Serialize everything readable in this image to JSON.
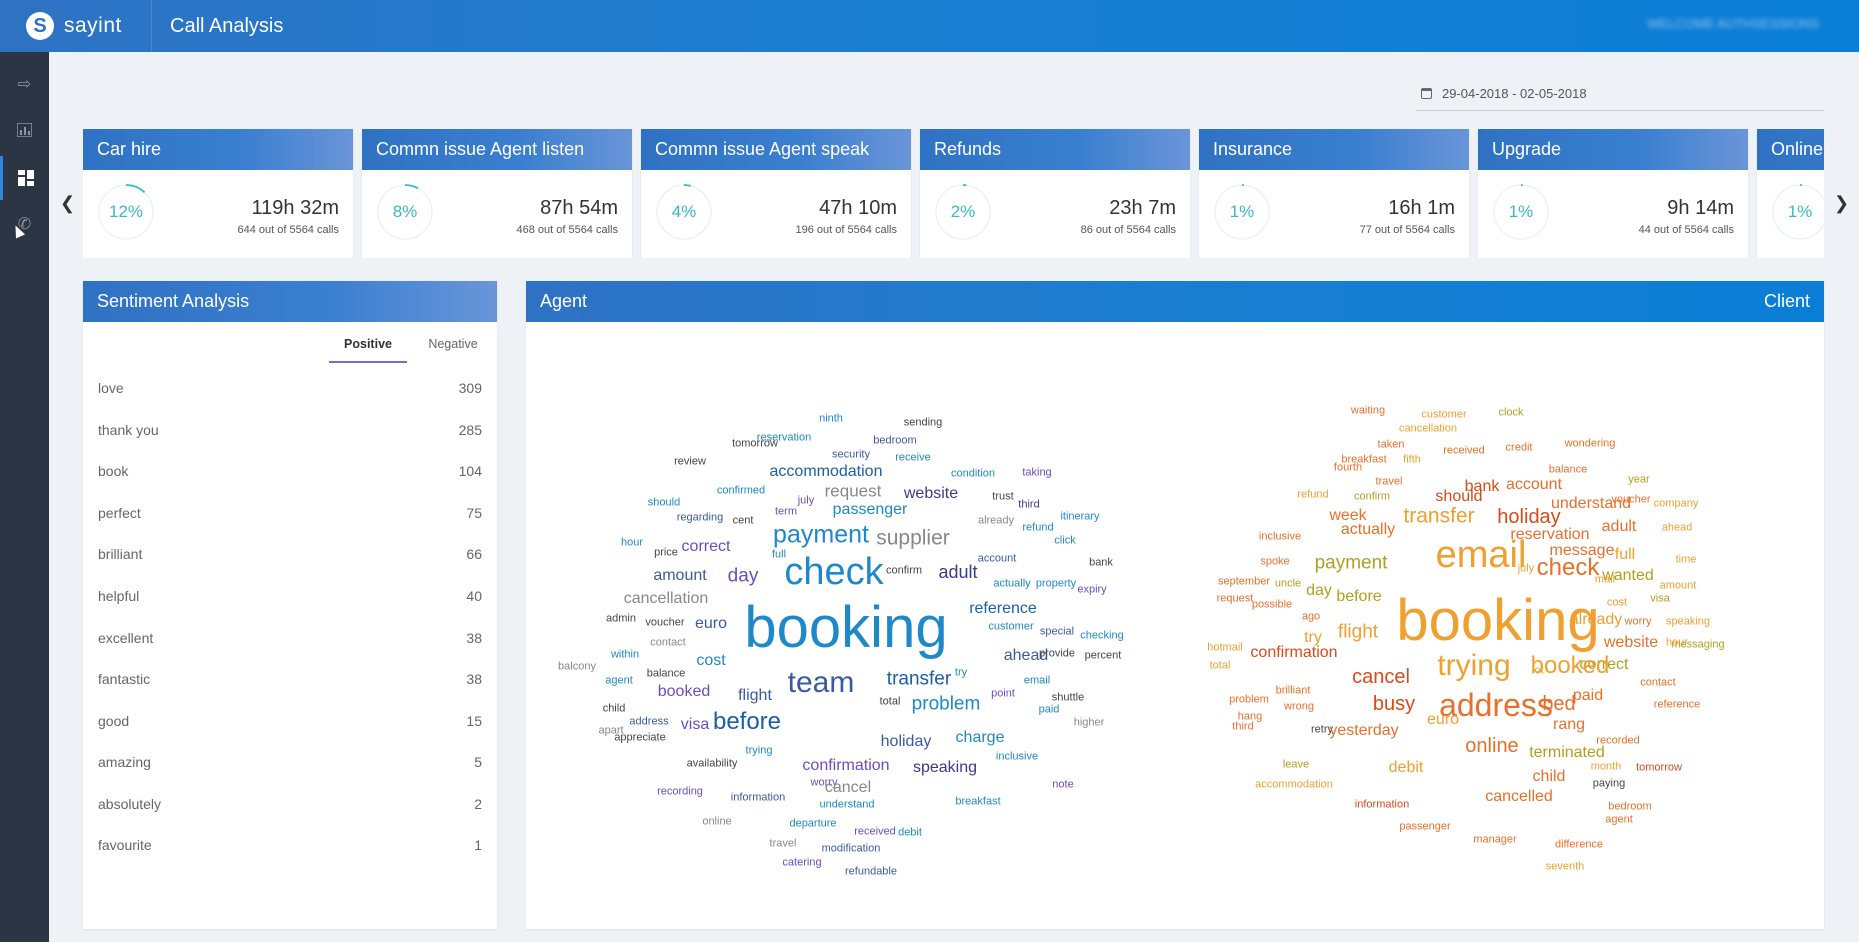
{
  "app": {
    "logo_text": "sayint",
    "page_title": "Call Analysis",
    "welcome": "WELCOME AUTHSESSIONS"
  },
  "sidebar": {
    "icons": [
      "collapse-icon",
      "bar-chart-icon",
      "dashboard-icon",
      "phone-icon"
    ],
    "active": "dashboard-icon"
  },
  "date_range": "29-04-2018 - 02-05-2018",
  "carousel": {
    "cards": [
      {
        "title": "Car hire",
        "percent": "12%",
        "duration": "119h 32m",
        "calls": "644 out of 5564 calls",
        "fraction": 0.12
      },
      {
        "title": "Commn issue Agent listen",
        "percent": "8%",
        "duration": "87h 54m",
        "calls": "468 out of 5564 calls",
        "fraction": 0.08
      },
      {
        "title": "Commn issue Agent speak",
        "percent": "4%",
        "duration": "47h 10m",
        "calls": "196 out of 5564 calls",
        "fraction": 0.04
      },
      {
        "title": "Refunds",
        "percent": "2%",
        "duration": "23h 7m",
        "calls": "86 out of 5564 calls",
        "fraction": 0.02
      },
      {
        "title": "Insurance",
        "percent": "1%",
        "duration": "16h 1m",
        "calls": "77 out of 5564 calls",
        "fraction": 0.01
      },
      {
        "title": "Upgrade",
        "percent": "1%",
        "duration": "9h 14m",
        "calls": "44 out of 5564 calls",
        "fraction": 0.01
      },
      {
        "title": "Online",
        "percent": "1%",
        "duration": "",
        "calls": "",
        "fraction": 0.01
      }
    ]
  },
  "sentiment": {
    "title": "Sentiment Analysis",
    "tabs": {
      "positive": "Positive",
      "negative": "Negative"
    },
    "rows": [
      {
        "term": "love",
        "count": "309"
      },
      {
        "term": "thank you",
        "count": "285"
      },
      {
        "term": "book",
        "count": "104"
      },
      {
        "term": "perfect",
        "count": "75"
      },
      {
        "term": "brilliant",
        "count": "66"
      },
      {
        "term": "helpful",
        "count": "40"
      },
      {
        "term": "excellent",
        "count": "38"
      },
      {
        "term": "fantastic",
        "count": "38"
      },
      {
        "term": "good",
        "count": "15"
      },
      {
        "term": "amazing",
        "count": "5"
      },
      {
        "term": "absolutely",
        "count": "2"
      },
      {
        "term": "favourite",
        "count": "1"
      }
    ]
  },
  "cloud": {
    "agent_label": "Agent",
    "client_label": "Client",
    "agent_words": [
      "ninth",
      "sending",
      "reservation",
      "bedroom",
      "tomorrow",
      "security",
      "receive",
      "review",
      "accommodation",
      "condition",
      "taking",
      "request",
      "confirmed",
      "website",
      "trust",
      "should",
      "july",
      "third",
      "term",
      "passenger",
      "regarding",
      "cent",
      "already",
      "itinerary",
      "refund",
      "click",
      "payment",
      "supplier",
      "correct",
      "hour",
      "price",
      "full",
      "account",
      "check",
      "confirm",
      "adult",
      "day",
      "bank",
      "amount",
      "actually",
      "property",
      "expiry",
      "cancellation",
      "reference",
      "admin",
      "voucher",
      "euro",
      "booking",
      "customer",
      "special",
      "checking",
      "contact",
      "cost",
      "ahead",
      "provide",
      "percent",
      "within",
      "balcony",
      "balance",
      "try",
      "agent",
      "transfer",
      "email",
      "team",
      "booked",
      "point",
      "flight",
      "total",
      "problem",
      "child",
      "paid",
      "shuttle",
      "before",
      "visa",
      "address",
      "higher",
      "apart",
      "appreciate",
      "holiday",
      "charge",
      "trying",
      "inclusive",
      "availability",
      "confirmation",
      "speaking",
      "worry",
      "note",
      "information",
      "cancel",
      "recording",
      "understand",
      "breakfast",
      "online",
      "departure",
      "received",
      "debit",
      "travel",
      "modification",
      "catering",
      "refundable"
    ],
    "client_words": [
      "waiting",
      "customer",
      "clock",
      "cancellation",
      "taken",
      "wondering",
      "breakfast",
      "received",
      "credit",
      "fifth",
      "fourth",
      "balance",
      "year",
      "bank",
      "travel",
      "account",
      "refund",
      "confirm",
      "should",
      "voucher",
      "understand",
      "week",
      "transfer",
      "holiday",
      "company",
      "reservation",
      "adult",
      "actually",
      "inclusive",
      "ahead",
      "message",
      "email",
      "full",
      "spoke",
      "payment",
      "check",
      "july",
      "time",
      "wanted",
      "mail",
      "september",
      "uncle",
      "day",
      "before",
      "amount",
      "visa",
      "request",
      "possible",
      "cost",
      "ago",
      "booking",
      "already",
      "worry",
      "speaking",
      "flight",
      "try",
      "website",
      "hour",
      "messaging",
      "hotmail",
      "confirmation",
      "correct",
      "trying",
      "booked",
      "lot",
      "total",
      "cancel",
      "contact",
      "brilliant",
      "paid",
      "reference",
      "problem",
      "address",
      "bed",
      "busy",
      "wrong",
      "hang",
      "euro",
      "rang",
      "third",
      "retry",
      "yesterday",
      "recorded",
      "online",
      "terminated",
      "leave",
      "debit",
      "month",
      "tomorrow",
      "child",
      "paying",
      "accommodation",
      "cancelled",
      "information",
      "bedroom",
      "agent",
      "passenger",
      "manager",
      "difference",
      "seventh"
    ]
  },
  "colors": {
    "header_blue": "#1b7ed0",
    "sidebar": "#2b3544",
    "accent_teal": "#3ab8cc",
    "tab_underline": "#6c6fd1"
  }
}
